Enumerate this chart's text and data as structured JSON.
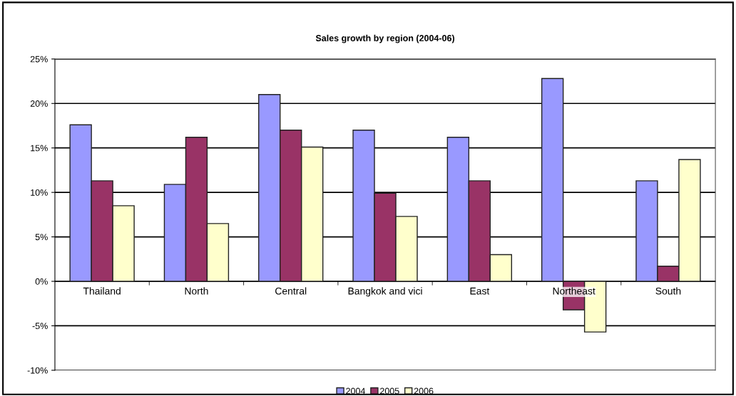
{
  "chart_data": {
    "type": "bar",
    "title": "Sales growth by region (2004-06)",
    "categories": [
      "Thailand",
      "North",
      "Central",
      "Bangkok and vici",
      "East",
      "Northeast",
      "South"
    ],
    "series": [
      {
        "name": "2004",
        "color": "#9999ff",
        "values": [
          17.6,
          10.9,
          21.0,
          17.0,
          16.2,
          22.8,
          11.3
        ]
      },
      {
        "name": "2005",
        "color": "#993366",
        "values": [
          11.3,
          16.2,
          17.0,
          9.9,
          11.3,
          -3.2,
          1.7
        ]
      },
      {
        "name": "2006",
        "color": "#ffffcc",
        "values": [
          8.5,
          6.5,
          15.1,
          7.3,
          3.0,
          -5.7,
          13.7
        ]
      }
    ],
    "ylim": [
      -10,
      25
    ],
    "yticks": [
      {
        "value": -10,
        "label": "-10%"
      },
      {
        "value": -5,
        "label": "-5%"
      },
      {
        "value": 0,
        "label": "0%"
      },
      {
        "value": 5,
        "label": "5%"
      },
      {
        "value": 10,
        "label": "10%"
      },
      {
        "value": 15,
        "label": "15%"
      },
      {
        "value": 20,
        "label": "20%"
      },
      {
        "value": 25,
        "label": "25%"
      }
    ],
    "grid": "y",
    "legend": "bottom"
  }
}
